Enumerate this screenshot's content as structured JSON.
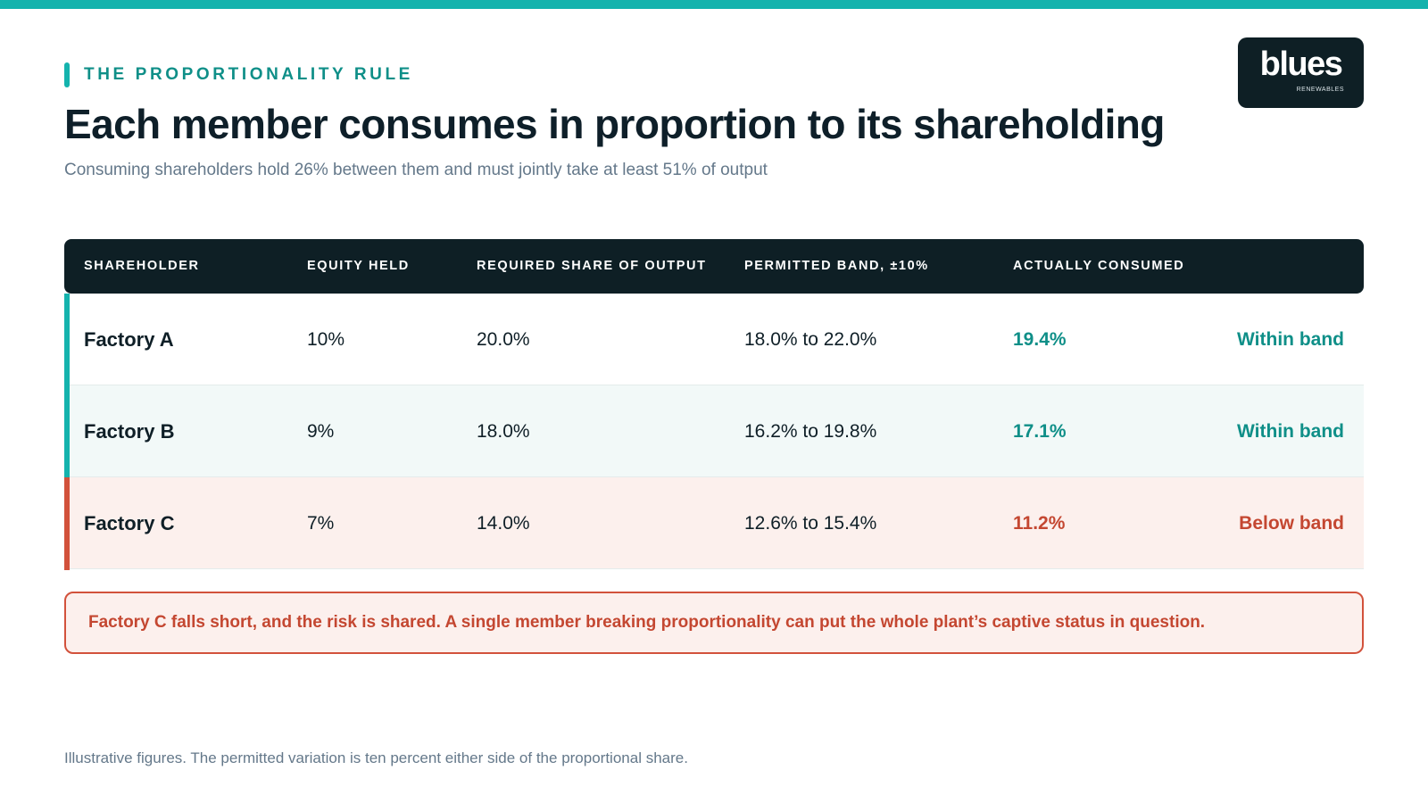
{
  "colors": {
    "accent_teal": "#14b3ad",
    "text_teal": "#0f8f88",
    "dark_navy": "#0e1f25",
    "alert_red": "#c44731"
  },
  "eyebrow": "THE PROPORTIONALITY RULE",
  "title": "Each member consumes in proportion to its shareholding",
  "subtitle": "Consuming shareholders hold 26% between them and must jointly take at least 51% of output",
  "logo": {
    "word": "blues",
    "sub": "RENEWABLES"
  },
  "table": {
    "headers": [
      "SHAREHOLDER",
      "EQUITY HELD",
      "REQUIRED SHARE OF OUTPUT",
      "PERMITTED BAND, ±10%",
      "ACTUALLY CONSUMED"
    ],
    "rows": [
      {
        "name": "Factory A",
        "equity": "10%",
        "required": "20.0%",
        "band": "18.0% to 22.0%",
        "consumed": "19.4%",
        "status": "Within band",
        "state": "ok"
      },
      {
        "name": "Factory B",
        "equity": "9%",
        "required": "18.0%",
        "band": "16.2% to 19.8%",
        "consumed": "17.1%",
        "status": "Within band",
        "state": "ok"
      },
      {
        "name": "Factory C",
        "equity": "7%",
        "required": "14.0%",
        "band": "12.6% to 15.4%",
        "consumed": "11.2%",
        "status": "Below band",
        "state": "bad"
      }
    ]
  },
  "callout": "Factory C falls short, and the risk is shared. A single member breaking proportionality can put the whole plant’s captive status in question.",
  "footnote": "Illustrative figures. The permitted variation is ten percent either side of the proportional share."
}
